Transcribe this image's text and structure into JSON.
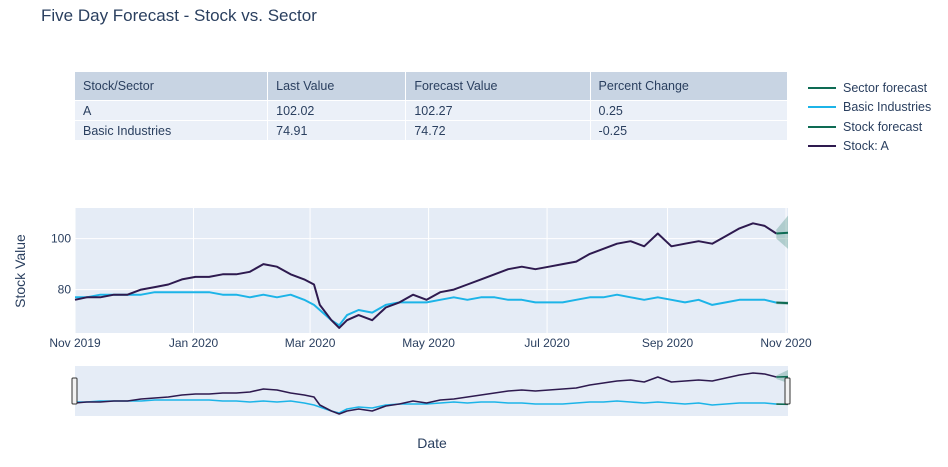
{
  "title": "Five Day Forecast - Stock vs. Sector",
  "table": {
    "headers": [
      "Stock/Sector",
      "Last Value",
      "Forecast Value",
      "Percent Change"
    ],
    "rows": [
      [
        "A",
        "102.02",
        "102.27",
        "0.25"
      ],
      [
        "Basic Industries",
        "74.91",
        "74.72",
        "-0.25"
      ]
    ]
  },
  "legend": [
    {
      "name": "Sector forecast",
      "color": "#0e6b53"
    },
    {
      "name": "Basic Industries",
      "color": "#1cb4e8"
    },
    {
      "name": "Stock forecast",
      "color": "#0e6b53"
    },
    {
      "name": "Stock: A",
      "color": "#2e1a4f"
    }
  ],
  "chart_data": {
    "type": "line",
    "title": "Five Day Forecast - Stock vs. Sector",
    "xlabel": "Date",
    "ylabel": "Stock Value",
    "x_range": [
      "2019-11-01",
      "2020-11-02"
    ],
    "ylim": [
      63,
      112
    ],
    "x_ticks": [
      {
        "date": "2019-11-01",
        "label": "Nov 2019"
      },
      {
        "date": "2020-01-01",
        "label": "Jan 2020"
      },
      {
        "date": "2020-03-01",
        "label": "Mar 2020"
      },
      {
        "date": "2020-05-01",
        "label": "May 2020"
      },
      {
        "date": "2020-07-01",
        "label": "Jul 2020"
      },
      {
        "date": "2020-09-01",
        "label": "Sep 2020"
      },
      {
        "date": "2020-11-01",
        "label": "Nov 2020"
      }
    ],
    "y_ticks": [
      80,
      100
    ],
    "grid": true,
    "legend_position": "right",
    "series": [
      {
        "name": "Stock: A",
        "color": "#2e1a4f",
        "points": [
          [
            "2019-11-01",
            76
          ],
          [
            "2019-11-07",
            77
          ],
          [
            "2019-11-14",
            77
          ],
          [
            "2019-11-21",
            78
          ],
          [
            "2019-11-28",
            78
          ],
          [
            "2019-12-05",
            80
          ],
          [
            "2019-12-12",
            81
          ],
          [
            "2019-12-19",
            82
          ],
          [
            "2019-12-26",
            84
          ],
          [
            "2020-01-02",
            85
          ],
          [
            "2020-01-09",
            85
          ],
          [
            "2020-01-16",
            86
          ],
          [
            "2020-01-23",
            86
          ],
          [
            "2020-01-30",
            87
          ],
          [
            "2020-02-06",
            90
          ],
          [
            "2020-02-13",
            89
          ],
          [
            "2020-02-20",
            86
          ],
          [
            "2020-02-27",
            84
          ],
          [
            "2020-03-03",
            82
          ],
          [
            "2020-03-06",
            74
          ],
          [
            "2020-03-12",
            68
          ],
          [
            "2020-03-16",
            65
          ],
          [
            "2020-03-20",
            68
          ],
          [
            "2020-03-26",
            70
          ],
          [
            "2020-04-02",
            68
          ],
          [
            "2020-04-09",
            73
          ],
          [
            "2020-04-16",
            75
          ],
          [
            "2020-04-23",
            78
          ],
          [
            "2020-04-30",
            76
          ],
          [
            "2020-05-07",
            79
          ],
          [
            "2020-05-14",
            80
          ],
          [
            "2020-05-21",
            82
          ],
          [
            "2020-05-28",
            84
          ],
          [
            "2020-06-04",
            86
          ],
          [
            "2020-06-11",
            88
          ],
          [
            "2020-06-18",
            89
          ],
          [
            "2020-06-25",
            88
          ],
          [
            "2020-07-02",
            89
          ],
          [
            "2020-07-09",
            90
          ],
          [
            "2020-07-16",
            91
          ],
          [
            "2020-07-23",
            94
          ],
          [
            "2020-07-30",
            96
          ],
          [
            "2020-08-06",
            98
          ],
          [
            "2020-08-13",
            99
          ],
          [
            "2020-08-20",
            97
          ],
          [
            "2020-08-27",
            102
          ],
          [
            "2020-09-03",
            97
          ],
          [
            "2020-09-10",
            98
          ],
          [
            "2020-09-17",
            99
          ],
          [
            "2020-09-24",
            98
          ],
          [
            "2020-10-01",
            101
          ],
          [
            "2020-10-08",
            104
          ],
          [
            "2020-10-15",
            106
          ],
          [
            "2020-10-21",
            105
          ],
          [
            "2020-10-27",
            102.02
          ]
        ]
      },
      {
        "name": "Basic Industries",
        "color": "#1cb4e8",
        "points": [
          [
            "2019-11-01",
            77
          ],
          [
            "2019-11-07",
            77
          ],
          [
            "2019-11-14",
            78
          ],
          [
            "2019-11-21",
            78
          ],
          [
            "2019-11-28",
            78
          ],
          [
            "2019-12-05",
            78
          ],
          [
            "2019-12-12",
            79
          ],
          [
            "2019-12-19",
            79
          ],
          [
            "2019-12-26",
            79
          ],
          [
            "2020-01-02",
            79
          ],
          [
            "2020-01-09",
            79
          ],
          [
            "2020-01-16",
            78
          ],
          [
            "2020-01-23",
            78
          ],
          [
            "2020-01-30",
            77
          ],
          [
            "2020-02-06",
            78
          ],
          [
            "2020-02-13",
            77
          ],
          [
            "2020-02-20",
            78
          ],
          [
            "2020-02-27",
            76
          ],
          [
            "2020-03-03",
            74
          ],
          [
            "2020-03-06",
            72
          ],
          [
            "2020-03-12",
            68
          ],
          [
            "2020-03-16",
            66
          ],
          [
            "2020-03-20",
            70
          ],
          [
            "2020-03-26",
            72
          ],
          [
            "2020-04-02",
            71
          ],
          [
            "2020-04-09",
            74
          ],
          [
            "2020-04-16",
            75
          ],
          [
            "2020-04-23",
            75
          ],
          [
            "2020-04-30",
            75
          ],
          [
            "2020-05-07",
            76
          ],
          [
            "2020-05-14",
            77
          ],
          [
            "2020-05-21",
            76
          ],
          [
            "2020-05-28",
            77
          ],
          [
            "2020-06-04",
            77
          ],
          [
            "2020-06-11",
            76
          ],
          [
            "2020-06-18",
            76
          ],
          [
            "2020-06-25",
            75
          ],
          [
            "2020-07-02",
            75
          ],
          [
            "2020-07-09",
            75
          ],
          [
            "2020-07-16",
            76
          ],
          [
            "2020-07-23",
            77
          ],
          [
            "2020-07-30",
            77
          ],
          [
            "2020-08-06",
            78
          ],
          [
            "2020-08-13",
            77
          ],
          [
            "2020-08-20",
            76
          ],
          [
            "2020-08-27",
            77
          ],
          [
            "2020-09-03",
            76
          ],
          [
            "2020-09-10",
            75
          ],
          [
            "2020-09-17",
            76
          ],
          [
            "2020-09-24",
            74
          ],
          [
            "2020-10-01",
            75
          ],
          [
            "2020-10-08",
            76
          ],
          [
            "2020-10-15",
            76
          ],
          [
            "2020-10-21",
            76
          ],
          [
            "2020-10-27",
            74.91
          ]
        ]
      },
      {
        "name": "Stock forecast",
        "color": "#0e6b53",
        "points": [
          [
            "2020-10-27",
            102.02
          ],
          [
            "2020-11-02",
            102.27
          ]
        ],
        "band": [
          [
            "2020-10-27",
            100,
            103.5
          ],
          [
            "2020-11-02",
            96,
            109
          ]
        ]
      },
      {
        "name": "Sector forecast",
        "color": "#0e6b53",
        "points": [
          [
            "2020-10-27",
            74.91
          ],
          [
            "2020-11-02",
            74.72
          ]
        ],
        "band": [
          [
            "2020-10-27",
            74.3,
            75.5
          ],
          [
            "2020-11-02",
            74,
            75.4
          ]
        ]
      }
    ]
  }
}
